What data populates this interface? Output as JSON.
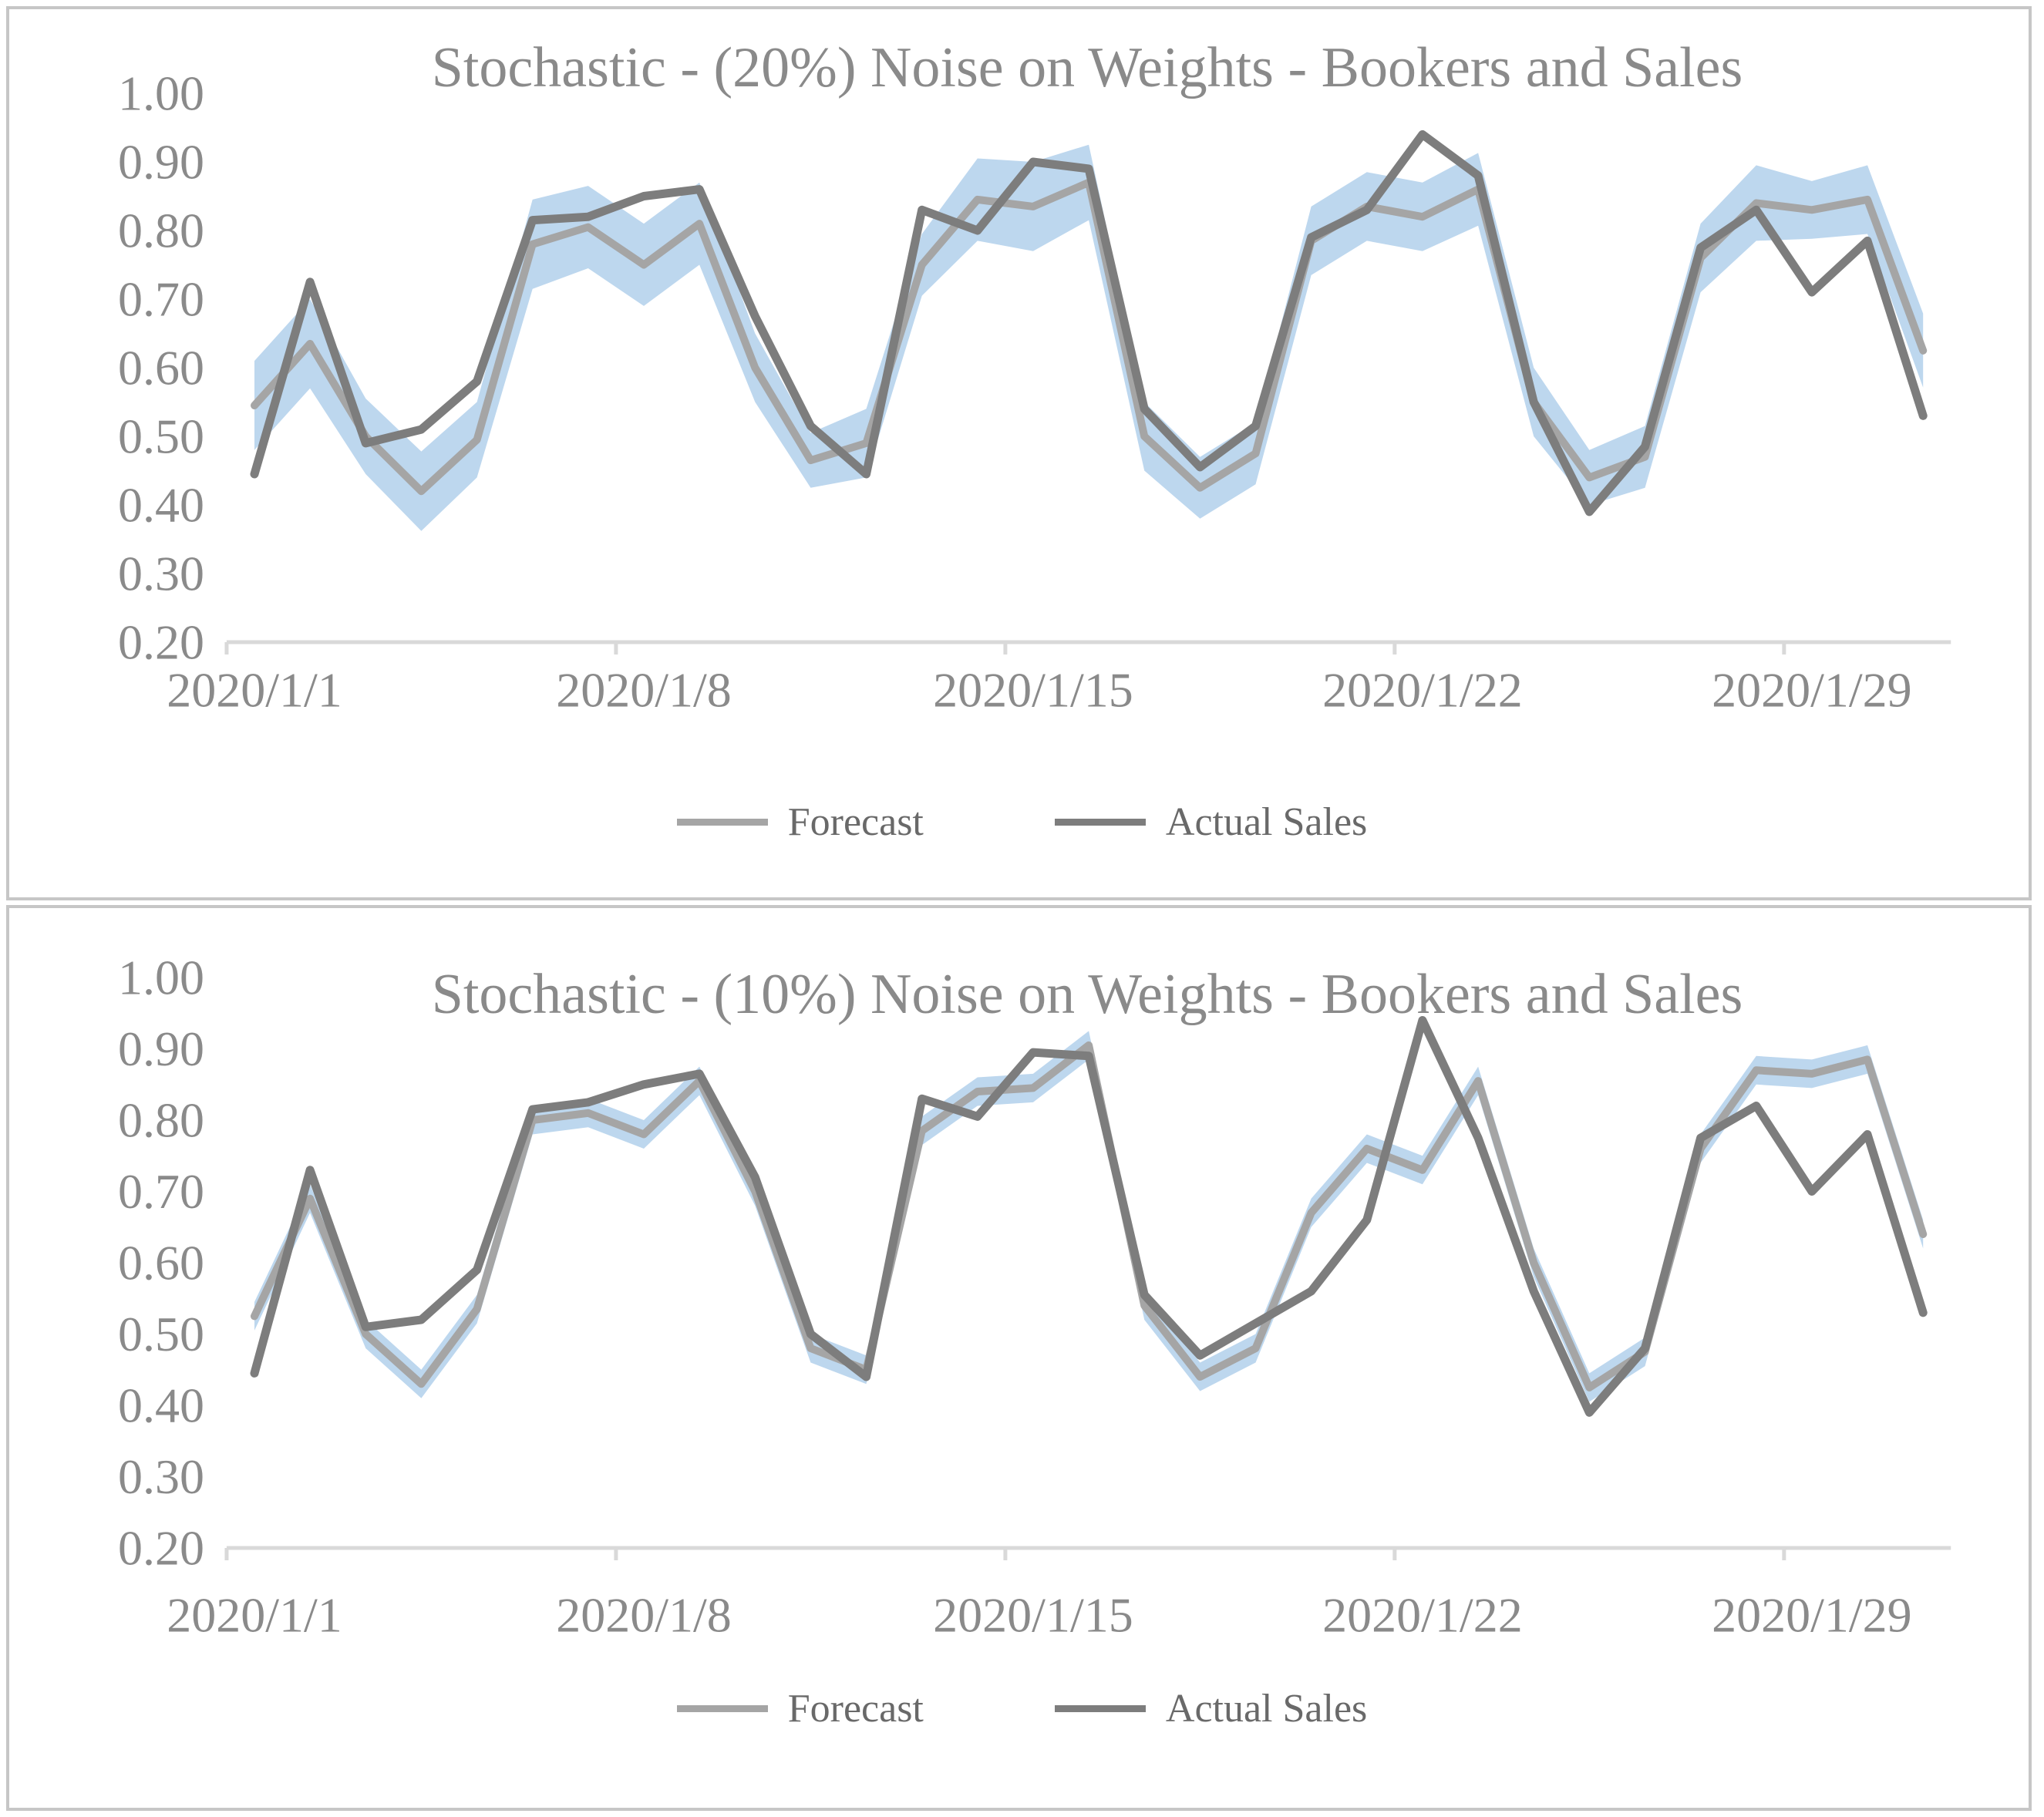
{
  "colors": {
    "forecast_line": "#a5a5a5",
    "actual_line": "#7d7d7d",
    "band_fill": "#bdd7ee",
    "axis_line": "#d9d9d9",
    "title_text": "#8a8a8a",
    "tick_text": "#8a8a8a",
    "legend_text": "#696969",
    "panel_border": "#c6c6c6",
    "background": "#ffffff"
  },
  "chart_data": [
    {
      "type": "line",
      "title": "Stochastic - (20%) Noise on Weights - Bookers and Sales",
      "xlabel": "",
      "ylabel": "",
      "ylim": [
        0.2,
        1.0
      ],
      "ytick_step": 0.1,
      "ytick_labels": [
        "1.00",
        "0.90",
        "0.80",
        "0.70",
        "0.60",
        "0.50",
        "0.40",
        "0.30",
        "0.20"
      ],
      "x_dates": [
        "2020/1/1",
        "2020/1/2",
        "2020/1/3",
        "2020/1/4",
        "2020/1/5",
        "2020/1/6",
        "2020/1/7",
        "2020/1/8",
        "2020/1/9",
        "2020/1/10",
        "2020/1/11",
        "2020/1/12",
        "2020/1/13",
        "2020/1/14",
        "2020/1/15",
        "2020/1/16",
        "2020/1/17",
        "2020/1/18",
        "2020/1/19",
        "2020/1/20",
        "2020/1/21",
        "2020/1/22",
        "2020/1/23",
        "2020/1/24",
        "2020/1/25",
        "2020/1/26",
        "2020/1/27",
        "2020/1/28",
        "2020/1/29",
        "2020/1/30",
        "2020/1/31"
      ],
      "x_tick_labels": [
        "2020/1/1",
        "2020/1/8",
        "2020/1/15",
        "2020/1/22",
        "2020/1/29"
      ],
      "grid": false,
      "legend_position": "bottom-center",
      "series": [
        {
          "name": "Forecast",
          "values": [
            0.545,
            0.635,
            0.5,
            0.42,
            0.495,
            0.78,
            0.805,
            0.75,
            0.81,
            0.6,
            0.465,
            0.49,
            0.75,
            0.845,
            0.835,
            0.87,
            0.5,
            0.425,
            0.475,
            0.785,
            0.835,
            0.82,
            0.86,
            0.55,
            0.44,
            0.47,
            0.76,
            0.84,
            0.83,
            0.845,
            0.625
          ]
        },
        {
          "name": "Actual Sales",
          "values": [
            0.445,
            0.725,
            0.49,
            0.51,
            0.58,
            0.815,
            0.82,
            0.85,
            0.86,
            0.675,
            0.515,
            0.445,
            0.83,
            0.8,
            0.9,
            0.89,
            0.54,
            0.455,
            0.515,
            0.79,
            0.83,
            0.94,
            0.88,
            0.55,
            0.39,
            0.485,
            0.775,
            0.83,
            0.71,
            0.785,
            0.53
          ]
        }
      ],
      "band": {
        "name": "forecast-uncertainty-band",
        "upper": [
          0.61,
          0.7,
          0.555,
          0.478,
          0.55,
          0.845,
          0.865,
          0.81,
          0.87,
          0.65,
          0.505,
          0.54,
          0.795,
          0.905,
          0.9,
          0.925,
          0.55,
          0.47,
          0.52,
          0.835,
          0.885,
          0.87,
          0.913,
          0.6,
          0.48,
          0.515,
          0.81,
          0.895,
          0.872,
          0.895,
          0.679
        ],
        "lower": [
          0.48,
          0.57,
          0.445,
          0.362,
          0.44,
          0.715,
          0.745,
          0.69,
          0.75,
          0.55,
          0.425,
          0.44,
          0.705,
          0.785,
          0.77,
          0.815,
          0.45,
          0.38,
          0.43,
          0.735,
          0.785,
          0.77,
          0.807,
          0.5,
          0.4,
          0.425,
          0.71,
          0.785,
          0.788,
          0.795,
          0.571
        ]
      }
    },
    {
      "type": "line",
      "title": "Stochastic - (10%) Noise on Weights - Bookers and Sales",
      "xlabel": "",
      "ylabel": "",
      "ylim": [
        0.2,
        1.0
      ],
      "ytick_step": 0.1,
      "ytick_labels": [
        "1.00",
        "0.90",
        "0.80",
        "0.70",
        "0.60",
        "0.50",
        "0.40",
        "0.30",
        "0.20"
      ],
      "x_dates": [
        "2020/1/1",
        "2020/1/2",
        "2020/1/3",
        "2020/1/4",
        "2020/1/5",
        "2020/1/6",
        "2020/1/7",
        "2020/1/8",
        "2020/1/9",
        "2020/1/10",
        "2020/1/11",
        "2020/1/12",
        "2020/1/13",
        "2020/1/14",
        "2020/1/15",
        "2020/1/16",
        "2020/1/17",
        "2020/1/18",
        "2020/1/19",
        "2020/1/20",
        "2020/1/21",
        "2020/1/22",
        "2020/1/23",
        "2020/1/24",
        "2020/1/25",
        "2020/1/26",
        "2020/1/27",
        "2020/1/28",
        "2020/1/29",
        "2020/1/30",
        "2020/1/31"
      ],
      "x_tick_labels": [
        "2020/1/1",
        "2020/1/8",
        "2020/1/15",
        "2020/1/22",
        "2020/1/29"
      ],
      "grid": false,
      "legend_position": "bottom-center",
      "series": [
        {
          "name": "Forecast",
          "values": [
            0.525,
            0.69,
            0.5,
            0.43,
            0.535,
            0.8,
            0.81,
            0.78,
            0.855,
            0.7,
            0.48,
            0.45,
            0.785,
            0.84,
            0.845,
            0.905,
            0.54,
            0.44,
            0.48,
            0.67,
            0.76,
            0.73,
            0.855,
            0.6,
            0.425,
            0.475,
            0.76,
            0.87,
            0.865,
            0.885,
            0.64
          ]
        },
        {
          "name": "Actual Sales",
          "values": [
            0.445,
            0.73,
            0.51,
            0.52,
            0.59,
            0.815,
            0.825,
            0.85,
            0.865,
            0.72,
            0.5,
            0.44,
            0.83,
            0.805,
            0.895,
            0.89,
            0.555,
            0.47,
            0.515,
            0.56,
            0.66,
            0.94,
            0.775,
            0.56,
            0.39,
            0.48,
            0.775,
            0.82,
            0.7,
            0.78,
            0.53
          ]
        }
      ],
      "band": {
        "name": "forecast-uncertainty-band",
        "upper": [
          0.545,
          0.71,
          0.52,
          0.45,
          0.555,
          0.82,
          0.83,
          0.8,
          0.875,
          0.72,
          0.5,
          0.47,
          0.805,
          0.86,
          0.865,
          0.925,
          0.56,
          0.46,
          0.5,
          0.69,
          0.78,
          0.75,
          0.875,
          0.62,
          0.445,
          0.495,
          0.78,
          0.89,
          0.885,
          0.905,
          0.66
        ],
        "lower": [
          0.505,
          0.67,
          0.48,
          0.41,
          0.515,
          0.78,
          0.79,
          0.76,
          0.835,
          0.68,
          0.46,
          0.43,
          0.765,
          0.82,
          0.825,
          0.885,
          0.52,
          0.42,
          0.46,
          0.65,
          0.74,
          0.71,
          0.835,
          0.58,
          0.405,
          0.455,
          0.74,
          0.85,
          0.845,
          0.865,
          0.62
        ]
      }
    }
  ]
}
